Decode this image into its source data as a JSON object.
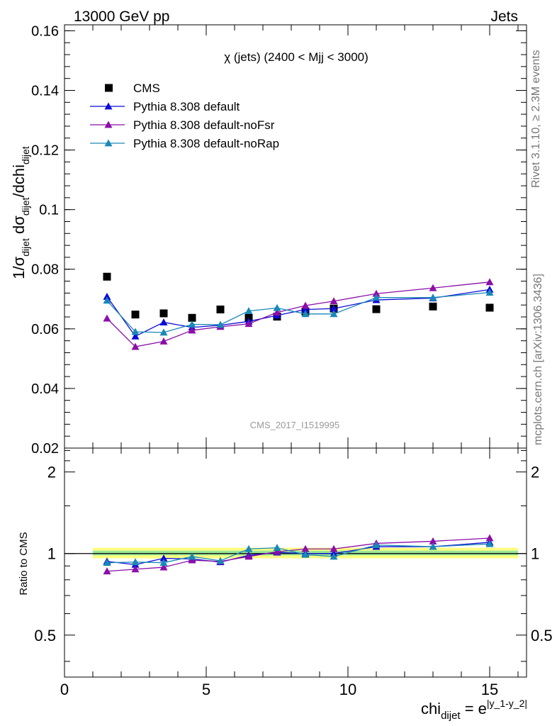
{
  "header": {
    "left": "13000 GeV pp",
    "right": "Jets"
  },
  "side_labels": {
    "rivet": "Rivet 3.1.10, ≥ 2.3M events",
    "source": "mcplots.cern.ch [arXiv:1306.3436]"
  },
  "watermark": "CMS_2017_I1519995",
  "colors": {
    "cms": "#000000",
    "default": "#0b0bd6",
    "noFsr": "#8b0ea8",
    "noRap": "#1a88b8",
    "band_outer": "#ffff80",
    "band_inner": "#99e699"
  },
  "chart_data": [
    {
      "type": "line",
      "title": "χ (jets) (2400 < Mjj < 3000)",
      "ylabel": "1/σ_dijet dσ_dijet/dchi_dijet",
      "ylim": [
        0.02,
        0.162
      ],
      "xlim": [
        0,
        16.3
      ],
      "yticks": [
        0.02,
        0.04,
        0.06,
        0.08,
        0.1,
        0.12,
        0.14,
        0.16
      ],
      "ytick_labels": [
        "0.02",
        "0.04",
        "0.06",
        "0.08",
        "0.1",
        "0.12",
        "0.14",
        "0.16"
      ],
      "legend_position": "top-left",
      "x": [
        1.5,
        2.5,
        3.5,
        4.5,
        5.5,
        6.5,
        7.5,
        8.5,
        9.5,
        11,
        13,
        15
      ],
      "series": [
        {
          "name": "CMS",
          "marker": "square",
          "values": [
            0.0775,
            0.0648,
            0.0652,
            0.0637,
            0.0665,
            0.0637,
            0.0641,
            0.0658,
            0.0668,
            0.0666,
            0.0675,
            0.0671
          ]
        },
        {
          "name": "Pythia 8.308 default",
          "marker": "triangle",
          "values": [
            0.0708,
            0.0575,
            0.0622,
            0.0605,
            0.0612,
            0.0625,
            0.0645,
            0.0665,
            0.0668,
            0.0697,
            0.0703,
            0.0732
          ]
        },
        {
          "name": "Pythia 8.308 default-noFsr",
          "marker": "triangle",
          "values": [
            0.0635,
            0.054,
            0.0558,
            0.0595,
            0.0607,
            0.0617,
            0.0655,
            0.0678,
            0.0693,
            0.0718,
            0.0737,
            0.0757
          ]
        },
        {
          "name": "Pythia 8.308 default-noRap",
          "marker": "triangle",
          "values": [
            0.0695,
            0.059,
            0.0588,
            0.0615,
            0.0614,
            0.066,
            0.067,
            0.065,
            0.065,
            0.0705,
            0.0705,
            0.0722
          ]
        }
      ]
    },
    {
      "type": "line",
      "ylabel": "Ratio to CMS",
      "xlabel": "chi_dijet = e^|y_1-y_2|",
      "log_y": true,
      "ylim": [
        0.35,
        2.45
      ],
      "xlim": [
        0,
        16.3
      ],
      "xticks": [
        0,
        5,
        10,
        15
      ],
      "xtick_labels": [
        "0",
        "5",
        "10",
        "15"
      ],
      "yticks": [
        0.5,
        1,
        2
      ],
      "ytick_labels": [
        "0.5",
        "1",
        "2"
      ],
      "band_outer": [
        0.96,
        1.05
      ],
      "band_inner": [
        0.985,
        1.025
      ],
      "x": [
        1.5,
        2.5,
        3.5,
        4.5,
        5.5,
        6.5,
        7.5,
        8.5,
        9.5,
        11,
        13,
        15
      ],
      "series": [
        {
          "name": "Pythia 8.308 default",
          "values": [
            0.935,
            0.91,
            0.96,
            0.955,
            0.93,
            0.985,
            1.01,
            1.0,
            1.0,
            1.06,
            1.06,
            1.1
          ]
        },
        {
          "name": "Pythia 8.308 default-noFsr",
          "values": [
            0.86,
            0.875,
            0.89,
            0.945,
            0.935,
            0.975,
            1.015,
            1.04,
            1.04,
            1.09,
            1.11,
            1.14
          ]
        },
        {
          "name": "Pythia 8.308 default-noRap",
          "values": [
            0.925,
            0.93,
            0.925,
            0.975,
            0.94,
            1.04,
            1.05,
            0.99,
            0.975,
            1.075,
            1.06,
            1.085
          ]
        }
      ]
    }
  ]
}
